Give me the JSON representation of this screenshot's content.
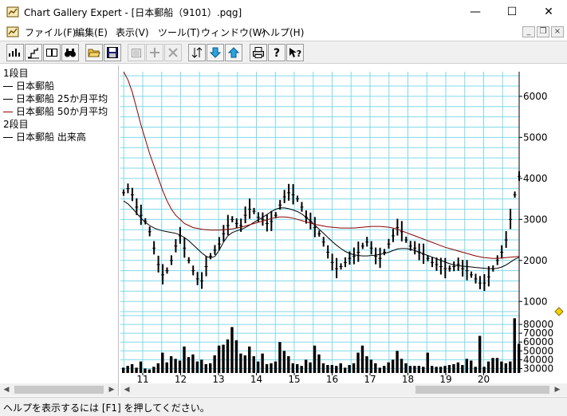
{
  "window": {
    "title": "Chart Gallery Expert - [日本郵船（9101）.pqg]",
    "minimize_glyph": "—",
    "maximize_glyph": "☐",
    "close_glyph": "✕"
  },
  "menu": {
    "items": [
      "ファイル(F)",
      "編集(E)",
      "表示(V)",
      "ツール(T)",
      "ウィンドウ(W)",
      "ヘルプ(H)"
    ],
    "mdi_minimize": "_",
    "mdi_restore": "❐",
    "mdi_close": "×"
  },
  "toolbar": {
    "buttons": [
      {
        "icon": "candlestick-chart-icon",
        "glyph": "▮ı▮"
      },
      {
        "icon": "step-chart-icon",
        "glyph": "⌐"
      },
      {
        "icon": "columns-icon",
        "glyph": "▯▯"
      },
      {
        "icon": "binoculars-icon",
        "glyph": "⛶"
      },
      {
        "icon": "open-folder-icon",
        "glyph": "📂"
      },
      {
        "icon": "save-icon",
        "glyph": "■"
      },
      {
        "icon": "properties-icon",
        "glyph": "▤"
      },
      {
        "icon": "add-icon",
        "glyph": "+"
      },
      {
        "icon": "delete-icon",
        "glyph": "×"
      },
      {
        "icon": "sort-icon",
        "glyph": "⇅"
      },
      {
        "icon": "arrow-down-icon",
        "glyph": "⇩"
      },
      {
        "icon": "arrow-up-icon",
        "glyph": "⇧"
      },
      {
        "icon": "print-icon",
        "glyph": "⎙"
      },
      {
        "icon": "help-icon",
        "glyph": "?"
      },
      {
        "icon": "context-help-icon",
        "glyph": "↖?"
      }
    ]
  },
  "legend": {
    "lines": [
      {
        "text": "1段目",
        "dash": false,
        "color": "#000000"
      },
      {
        "text": "日本郵船",
        "dash": true,
        "color": "#000000"
      },
      {
        "text": "日本郵船 25か月平均",
        "dash": true,
        "color": "#000000"
      },
      {
        "text": "日本郵船 50か月平均",
        "dash": true,
        "color": "#8b0000"
      },
      {
        "text": "2段目",
        "dash": false,
        "color": "#000000"
      },
      {
        "text": "日本郵船 出来高",
        "dash": true,
        "color": "#000000"
      }
    ]
  },
  "status": {
    "text": "ヘルプを表示するには [F1] を押してください。"
  },
  "chart_data": {
    "type": "line",
    "title": "",
    "x_tick_labels": [
      "11",
      "12",
      "13",
      "14",
      "15",
      "16",
      "17",
      "18",
      "19",
      "20"
    ],
    "price_panel": {
      "y_tick_labels": [
        "6000",
        "5000",
        "4000",
        "3000",
        "2000",
        "1000"
      ],
      "ylim": [
        850,
        6600
      ],
      "series": [
        {
          "name": "日本郵船",
          "color": "#000000",
          "style": "bars",
          "values": [
            3650,
            3750,
            3600,
            3300,
            3100,
            2950,
            2700,
            2300,
            1900,
            1650,
            1750,
            2000,
            2350,
            2600,
            2300,
            2000,
            1750,
            1550,
            1500,
            1850,
            2100,
            2250,
            2400,
            2650,
            2850,
            3000,
            2900,
            2850,
            3100,
            3250,
            3200,
            3050,
            3000,
            2900,
            2950,
            3100,
            3350,
            3550,
            3650,
            3600,
            3500,
            3300,
            3050,
            2950,
            2800,
            2650,
            2450,
            2200,
            1950,
            1800,
            1850,
            1950,
            2050,
            2100,
            2200,
            2350,
            2450,
            2300,
            2100,
            2050,
            2200,
            2400,
            2600,
            2800,
            2700,
            2500,
            2350,
            2300,
            2200,
            2150,
            2050,
            1950,
            1900,
            1850,
            1800,
            1800,
            1850,
            1900,
            1800,
            1750,
            1650,
            1550,
            1450,
            1450,
            1600,
            1800,
            2000,
            2200,
            2500,
            3000,
            3600,
            4050
          ]
        },
        {
          "name": "日本郵船 25か月平均",
          "color": "#000000",
          "style": "line",
          "values": [
            3450,
            3380,
            3270,
            3150,
            3030,
            2930,
            2850,
            2790,
            2750,
            2720,
            2700,
            2680,
            2660,
            2620,
            2560,
            2480,
            2380,
            2280,
            2180,
            2100,
            2060,
            2100,
            2250,
            2450,
            2600,
            2680,
            2720,
            2750,
            2800,
            2860,
            2930,
            2990,
            3050,
            3120,
            3190,
            3250,
            3280,
            3280,
            3260,
            3230,
            3190,
            3130,
            3050,
            2960,
            2860,
            2760,
            2660,
            2560,
            2460,
            2370,
            2290,
            2220,
            2170,
            2140,
            2120,
            2110,
            2110,
            2120,
            2130,
            2150,
            2170,
            2200,
            2240,
            2280,
            2290,
            2290,
            2270,
            2240,
            2200,
            2160,
            2120,
            2080,
            2040,
            2000,
            1960,
            1920,
            1890,
            1870,
            1860,
            1850,
            1840,
            1830,
            1820,
            1810,
            1800,
            1800,
            1810,
            1840,
            1890,
            1960,
            2030,
            2080
          ]
        },
        {
          "name": "日本郵船 50か月平均",
          "color": "#8b0000",
          "style": "line",
          "values": [
            6600,
            6400,
            6100,
            5700,
            5300,
            4950,
            4600,
            4300,
            4000,
            3700,
            3450,
            3250,
            3100,
            3000,
            2900,
            2850,
            2800,
            2780,
            2760,
            2750,
            2740,
            2740,
            2740,
            2750,
            2760,
            2770,
            2790,
            2810,
            2840,
            2870,
            2900,
            2930,
            2960,
            2990,
            3020,
            3050,
            3060,
            3060,
            3050,
            3030,
            3000,
            2970,
            2940,
            2910,
            2880,
            2860,
            2840,
            2820,
            2810,
            2800,
            2790,
            2790,
            2790,
            2790,
            2800,
            2810,
            2820,
            2830,
            2830,
            2830,
            2820,
            2810,
            2790,
            2760,
            2720,
            2680,
            2640,
            2600,
            2560,
            2520,
            2480,
            2440,
            2400,
            2360,
            2320,
            2290,
            2260,
            2230,
            2200,
            2170,
            2140,
            2110,
            2090,
            2070,
            2060,
            2050,
            2050,
            2060,
            2070,
            2080,
            2090,
            2100
          ]
        }
      ]
    },
    "volume_panel": {
      "y_tick_labels": [
        "80000",
        "70000",
        "60000",
        "50000",
        "40000",
        "30000"
      ],
      "ylim": [
        25000,
        90000
      ],
      "series": [
        {
          "name": "日本郵船 出来高",
          "color": "#000000",
          "style": "bars",
          "values": [
            31000,
            33000,
            35000,
            31000,
            38000,
            30000,
            29000,
            32000,
            36000,
            48000,
            37000,
            44000,
            41000,
            39000,
            55000,
            43000,
            46000,
            38000,
            40000,
            35000,
            36000,
            45000,
            56000,
            57000,
            63000,
            77000,
            62000,
            47000,
            45000,
            55000,
            44000,
            38000,
            47000,
            35000,
            36000,
            38000,
            60000,
            50000,
            44000,
            36000,
            35000,
            33000,
            40000,
            37000,
            56000,
            46000,
            36000,
            34000,
            34000,
            33000,
            36000,
            31000,
            34000,
            36000,
            48000,
            56000,
            44000,
            40000,
            36000,
            31000,
            33000,
            37000,
            40000,
            50000,
            41000,
            36000,
            33000,
            33000,
            33000,
            32000,
            48000,
            33000,
            32000,
            32000,
            33000,
            34000,
            35000,
            37000,
            34000,
            41000,
            39000,
            32000,
            67000,
            32000,
            38000,
            42000,
            42000,
            38000,
            36000,
            38000,
            87000,
            58000
          ]
        }
      ]
    },
    "xlabel": "",
    "ylabel": "",
    "grid": true
  }
}
